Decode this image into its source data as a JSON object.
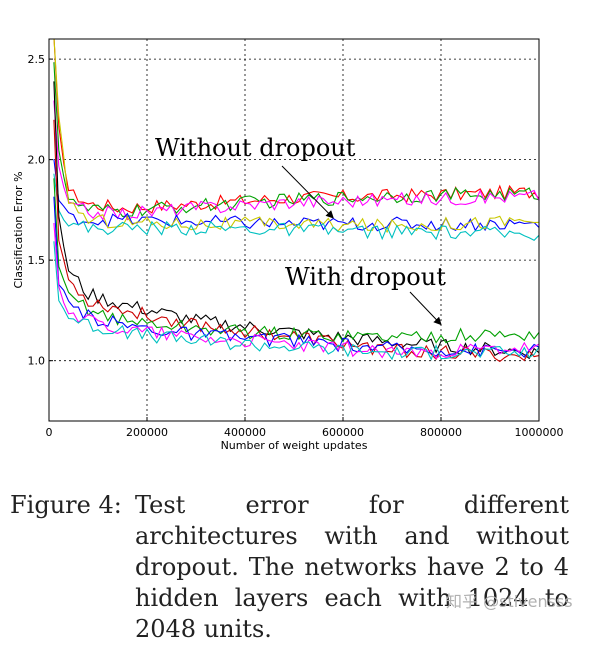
{
  "chart_data": {
    "type": "line",
    "xlabel": "Number of weight updates",
    "ylabel": "Classification Error %",
    "xlim": [
      0,
      1000000
    ],
    "ylim": [
      0.7,
      2.6
    ],
    "xticks": [
      0,
      200000,
      400000,
      600000,
      800000,
      1000000
    ],
    "xtick_labels": [
      "0",
      "200000",
      "400000",
      "600000",
      "800000",
      "1000000"
    ],
    "yticks": [
      1.0,
      1.5,
      2.0,
      2.5
    ],
    "ytick_labels": [
      "1.0",
      "1.5",
      "2.0",
      "2.5"
    ],
    "grid": true,
    "annotations": [
      {
        "text": "Without dropout",
        "arrow_to": [
          580000,
          1.71
        ]
      },
      {
        "text": "With dropout",
        "arrow_to": [
          800000,
          1.18
        ]
      }
    ],
    "series": [
      {
        "group": "Without dropout",
        "color": "#ff0000",
        "x": [
          10000,
          20000,
          40000,
          80000,
          150000,
          300000,
          500000,
          700000,
          1000000
        ],
        "values": [
          2.6,
          2.15,
          1.85,
          1.78,
          1.76,
          1.78,
          1.81,
          1.82,
          1.84
        ]
      },
      {
        "group": "Without dropout",
        "color": "#00a000",
        "x": [
          10000,
          20000,
          40000,
          80000,
          150000,
          300000,
          500000,
          700000,
          1000000
        ],
        "values": [
          2.5,
          2.05,
          1.8,
          1.75,
          1.74,
          1.77,
          1.8,
          1.82,
          1.83
        ]
      },
      {
        "group": "Without dropout",
        "color": "#ff00ff",
        "x": [
          10000,
          20000,
          40000,
          80000,
          150000,
          300000,
          500000,
          700000,
          1000000
        ],
        "values": [
          2.3,
          1.95,
          1.78,
          1.74,
          1.73,
          1.76,
          1.79,
          1.8,
          1.82
        ]
      },
      {
        "group": "Without dropout",
        "color": "#0000ff",
        "x": [
          10000,
          20000,
          40000,
          80000,
          150000,
          300000,
          500000,
          700000,
          1000000
        ],
        "values": [
          2.0,
          1.8,
          1.72,
          1.7,
          1.7,
          1.69,
          1.68,
          1.68,
          1.68
        ]
      },
      {
        "group": "Without dropout",
        "color": "#c8c800",
        "x": [
          10000,
          20000,
          40000,
          80000,
          150000,
          300000,
          500000,
          700000,
          1000000
        ],
        "values": [
          2.6,
          2.2,
          1.8,
          1.7,
          1.69,
          1.68,
          1.68,
          1.67,
          1.7
        ]
      },
      {
        "group": "Without dropout",
        "color": "#00c0c0",
        "x": [
          10000,
          20000,
          40000,
          80000,
          150000,
          300000,
          500000,
          700000,
          1000000
        ],
        "values": [
          1.95,
          1.75,
          1.68,
          1.66,
          1.66,
          1.66,
          1.65,
          1.64,
          1.63
        ]
      },
      {
        "group": "With dropout",
        "color": "#000000",
        "x": [
          10000,
          20000,
          40000,
          80000,
          150000,
          300000,
          500000,
          700000,
          1000000
        ],
        "values": [
          2.4,
          1.7,
          1.45,
          1.33,
          1.28,
          1.2,
          1.14,
          1.09,
          1.04
        ]
      },
      {
        "group": "With dropout",
        "color": "#cc0000",
        "x": [
          10000,
          20000,
          40000,
          80000,
          150000,
          300000,
          500000,
          700000,
          1000000
        ],
        "values": [
          2.2,
          1.6,
          1.4,
          1.3,
          1.25,
          1.18,
          1.12,
          1.05,
          1.02
        ]
      },
      {
        "group": "With dropout",
        "color": "#00a000",
        "x": [
          10000,
          20000,
          40000,
          80000,
          150000,
          300000,
          500000,
          700000,
          1000000
        ],
        "values": [
          1.9,
          1.45,
          1.33,
          1.26,
          1.2,
          1.16,
          1.13,
          1.12,
          1.13
        ]
      },
      {
        "group": "With dropout",
        "color": "#0000ff",
        "x": [
          10000,
          20000,
          40000,
          80000,
          150000,
          300000,
          500000,
          700000,
          1000000
        ],
        "values": [
          1.8,
          1.38,
          1.28,
          1.22,
          1.18,
          1.13,
          1.1,
          1.06,
          1.05
        ]
      },
      {
        "group": "With dropout",
        "color": "#ff00ff",
        "x": [
          10000,
          20000,
          40000,
          80000,
          150000,
          300000,
          500000,
          700000,
          1000000
        ],
        "values": [
          1.7,
          1.35,
          1.25,
          1.2,
          1.16,
          1.12,
          1.08,
          1.04,
          1.06
        ]
      },
      {
        "group": "With dropout",
        "color": "#00c0c0",
        "x": [
          10000,
          20000,
          40000,
          80000,
          150000,
          300000,
          500000,
          700000,
          1000000
        ],
        "values": [
          1.6,
          1.3,
          1.22,
          1.18,
          1.14,
          1.1,
          1.07,
          1.04,
          1.04
        ]
      }
    ]
  },
  "caption": {
    "label": "Figure 4:",
    "text": "Test error for different architectures with and without dropout. The networks have 2 to 4 hidden layers each with 1024 to 2048 units."
  },
  "watermark": "知乎 @stivensss"
}
